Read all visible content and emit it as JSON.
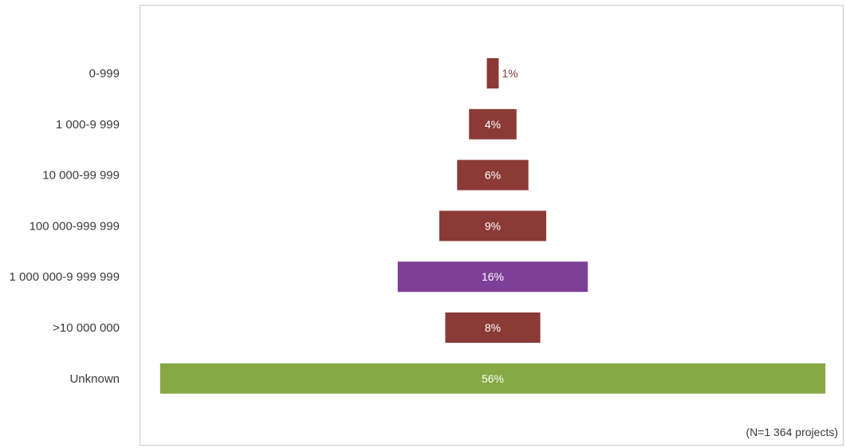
{
  "chart_data": {
    "type": "bar",
    "orientation": "horizontal-centered",
    "categories": [
      "0-999",
      "1 000-9 999",
      "10 000-99 999",
      "100 000-999 999",
      "1 000 000-9 999 999",
      ">10 000 000",
      "Unknown"
    ],
    "values": [
      1,
      4,
      6,
      9,
      16,
      8,
      56
    ],
    "value_labels": [
      "1%",
      "4%",
      "6%",
      "9%",
      "16%",
      "8%",
      "56%"
    ],
    "bar_colors": [
      "#8b3a35",
      "#8b3a35",
      "#8b3a35",
      "#8b3a35",
      "#7d3f97",
      "#8b3a35",
      "#86a845"
    ],
    "value_label_colors": [
      "#8b3a35",
      "#ffffff",
      "#ffffff",
      "#ffffff",
      "#ffffff",
      "#ffffff",
      "#ffffff"
    ],
    "note": "(N=1 364 projects)",
    "title": "",
    "xlabel": "",
    "ylabel": "",
    "grid": false
  }
}
